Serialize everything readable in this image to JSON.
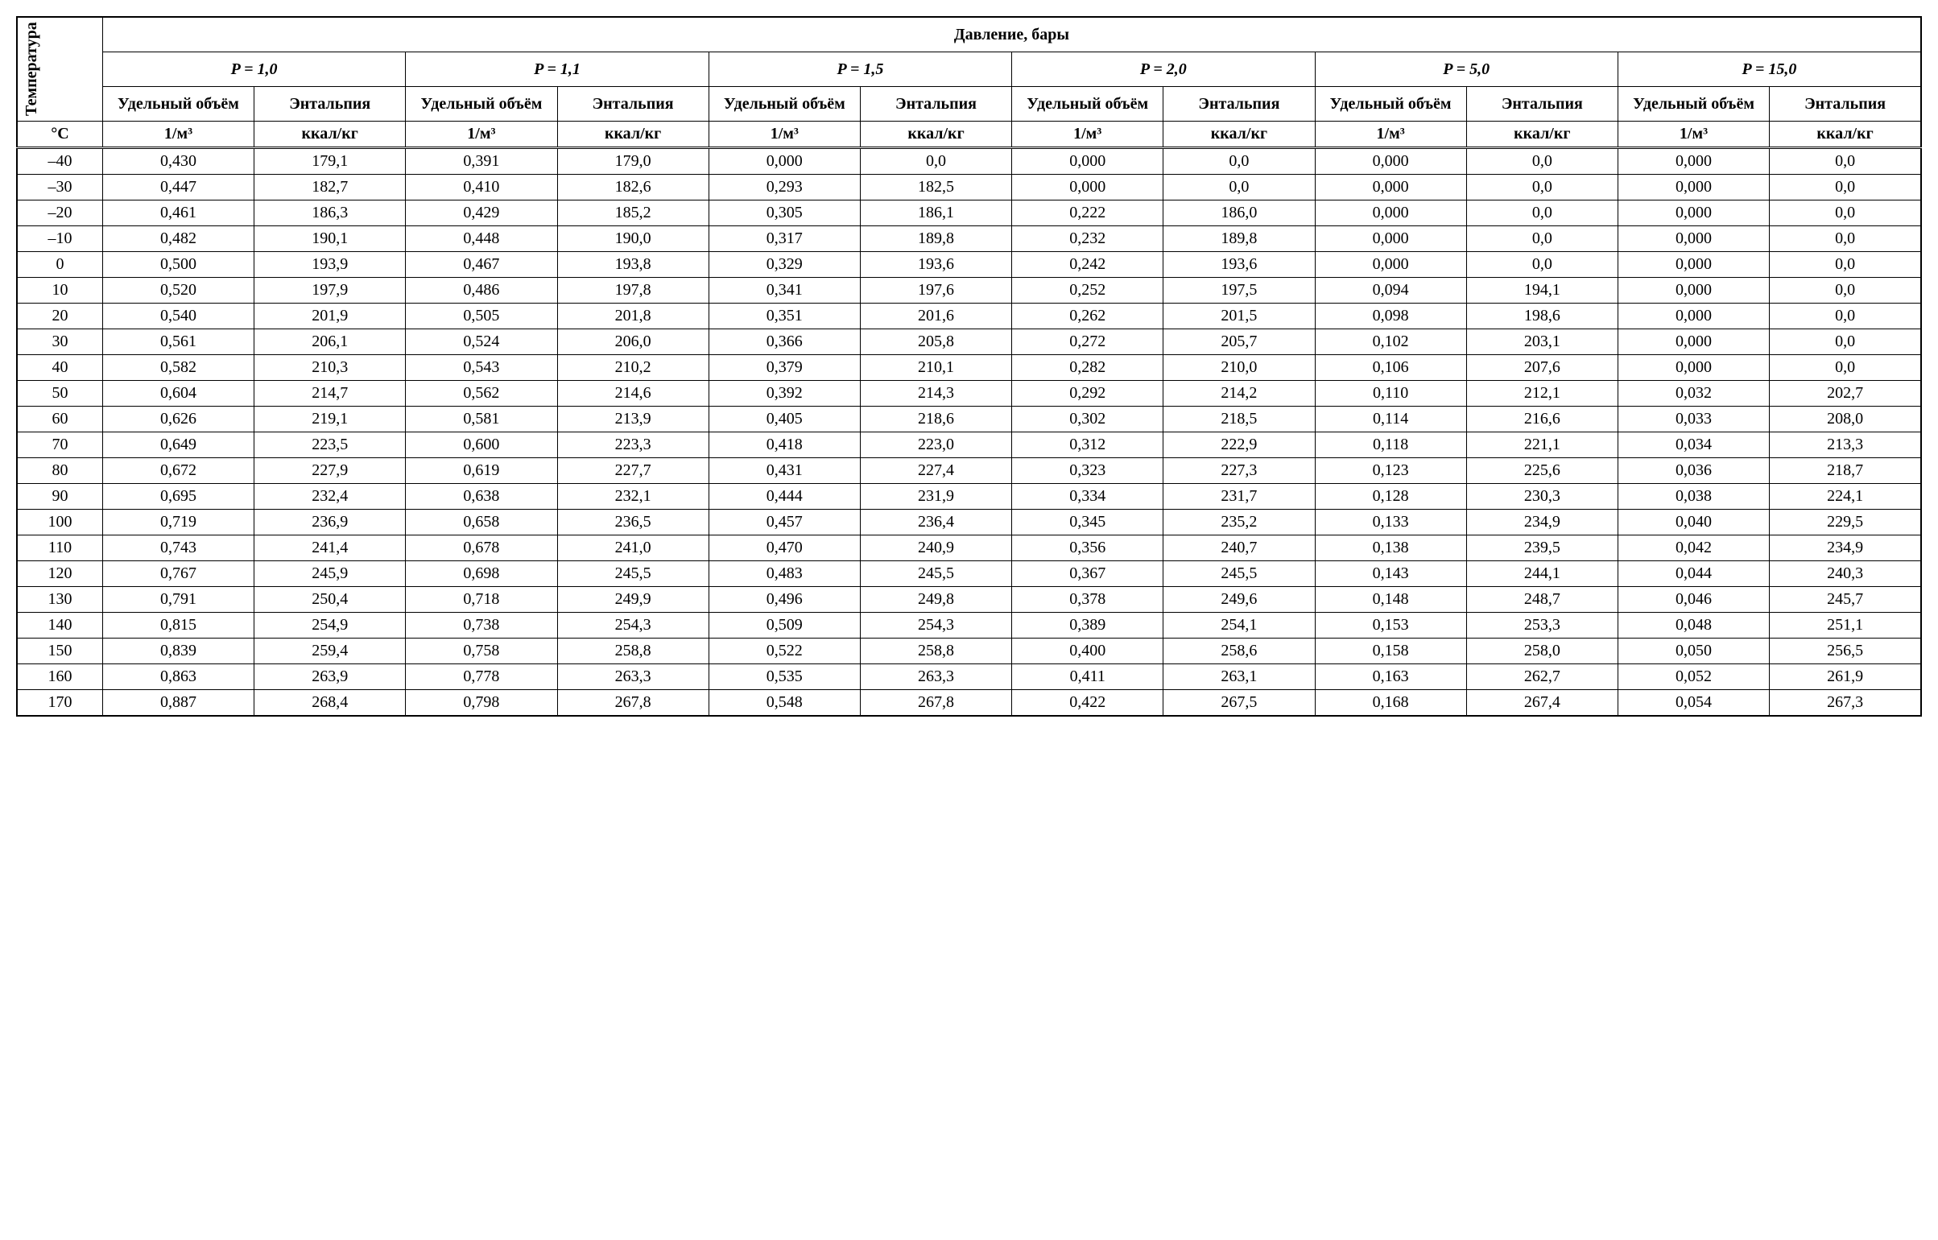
{
  "headers": {
    "temperature_label": "Температура",
    "pressure_title": "Давление, бары",
    "pressure_groups": [
      "P = 1,0",
      "P = 1,1",
      "P = 1,5",
      "P = 2,0",
      "P = 5,0",
      "P = 15,0"
    ],
    "specific_volume": "Удельный объём",
    "enthalpy": "Энтальпия",
    "temp_unit": "°C",
    "volume_unit": "1/м³",
    "enthalpy_unit": "ккал/кг"
  },
  "colors": {
    "background": "#ffffff",
    "text": "#000000",
    "border": "#000000"
  },
  "typography": {
    "font_family": "Times New Roman",
    "cell_fontsize": 20,
    "header_fontweight": "bold"
  },
  "temperatures": [
    "–40",
    "–30",
    "–20",
    "–10",
    "0",
    "10",
    "20",
    "30",
    "40",
    "50",
    "60",
    "70",
    "80",
    "90",
    "100",
    "110",
    "120",
    "130",
    "140",
    "150",
    "160",
    "170"
  ],
  "rows": [
    [
      "0,430",
      "179,1",
      "0,391",
      "179,0",
      "0,000",
      "0,0",
      "0,000",
      "0,0",
      "0,000",
      "0,0",
      "0,000",
      "0,0"
    ],
    [
      "0,447",
      "182,7",
      "0,410",
      "182,6",
      "0,293",
      "182,5",
      "0,000",
      "0,0",
      "0,000",
      "0,0",
      "0,000",
      "0,0"
    ],
    [
      "0,461",
      "186,3",
      "0,429",
      "185,2",
      "0,305",
      "186,1",
      "0,222",
      "186,0",
      "0,000",
      "0,0",
      "0,000",
      "0,0"
    ],
    [
      "0,482",
      "190,1",
      "0,448",
      "190,0",
      "0,317",
      "189,8",
      "0,232",
      "189,8",
      "0,000",
      "0,0",
      "0,000",
      "0,0"
    ],
    [
      "0,500",
      "193,9",
      "0,467",
      "193,8",
      "0,329",
      "193,6",
      "0,242",
      "193,6",
      "0,000",
      "0,0",
      "0,000",
      "0,0"
    ],
    [
      "0,520",
      "197,9",
      "0,486",
      "197,8",
      "0,341",
      "197,6",
      "0,252",
      "197,5",
      "0,094",
      "194,1",
      "0,000",
      "0,0"
    ],
    [
      "0,540",
      "201,9",
      "0,505",
      "201,8",
      "0,351",
      "201,6",
      "0,262",
      "201,5",
      "0,098",
      "198,6",
      "0,000",
      "0,0"
    ],
    [
      "0,561",
      "206,1",
      "0,524",
      "206,0",
      "0,366",
      "205,8",
      "0,272",
      "205,7",
      "0,102",
      "203,1",
      "0,000",
      "0,0"
    ],
    [
      "0,582",
      "210,3",
      "0,543",
      "210,2",
      "0,379",
      "210,1",
      "0,282",
      "210,0",
      "0,106",
      "207,6",
      "0,000",
      "0,0"
    ],
    [
      "0,604",
      "214,7",
      "0,562",
      "214,6",
      "0,392",
      "214,3",
      "0,292",
      "214,2",
      "0,110",
      "212,1",
      "0,032",
      "202,7"
    ],
    [
      "0,626",
      "219,1",
      "0,581",
      "213,9",
      "0,405",
      "218,6",
      "0,302",
      "218,5",
      "0,114",
      "216,6",
      "0,033",
      "208,0"
    ],
    [
      "0,649",
      "223,5",
      "0,600",
      "223,3",
      "0,418",
      "223,0",
      "0,312",
      "222,9",
      "0,118",
      "221,1",
      "0,034",
      "213,3"
    ],
    [
      "0,672",
      "227,9",
      "0,619",
      "227,7",
      "0,431",
      "227,4",
      "0,323",
      "227,3",
      "0,123",
      "225,6",
      "0,036",
      "218,7"
    ],
    [
      "0,695",
      "232,4",
      "0,638",
      "232,1",
      "0,444",
      "231,9",
      "0,334",
      "231,7",
      "0,128",
      "230,3",
      "0,038",
      "224,1"
    ],
    [
      "0,719",
      "236,9",
      "0,658",
      "236,5",
      "0,457",
      "236,4",
      "0,345",
      "235,2",
      "0,133",
      "234,9",
      "0,040",
      "229,5"
    ],
    [
      "0,743",
      "241,4",
      "0,678",
      "241,0",
      "0,470",
      "240,9",
      "0,356",
      "240,7",
      "0,138",
      "239,5",
      "0,042",
      "234,9"
    ],
    [
      "0,767",
      "245,9",
      "0,698",
      "245,5",
      "0,483",
      "245,5",
      "0,367",
      "245,5",
      "0,143",
      "244,1",
      "0,044",
      "240,3"
    ],
    [
      "0,791",
      "250,4",
      "0,718",
      "249,9",
      "0,496",
      "249,8",
      "0,378",
      "249,6",
      "0,148",
      "248,7",
      "0,046",
      "245,7"
    ],
    [
      "0,815",
      "254,9",
      "0,738",
      "254,3",
      "0,509",
      "254,3",
      "0,389",
      "254,1",
      "0,153",
      "253,3",
      "0,048",
      "251,1"
    ],
    [
      "0,839",
      "259,4",
      "0,758",
      "258,8",
      "0,522",
      "258,8",
      "0,400",
      "258,6",
      "0,158",
      "258,0",
      "0,050",
      "256,5"
    ],
    [
      "0,863",
      "263,9",
      "0,778",
      "263,3",
      "0,535",
      "263,3",
      "0,411",
      "263,1",
      "0,163",
      "262,7",
      "0,052",
      "261,9"
    ],
    [
      "0,887",
      "268,4",
      "0,798",
      "267,8",
      "0,548",
      "267,8",
      "0,422",
      "267,5",
      "0,168",
      "267,4",
      "0,054",
      "267,3"
    ]
  ]
}
